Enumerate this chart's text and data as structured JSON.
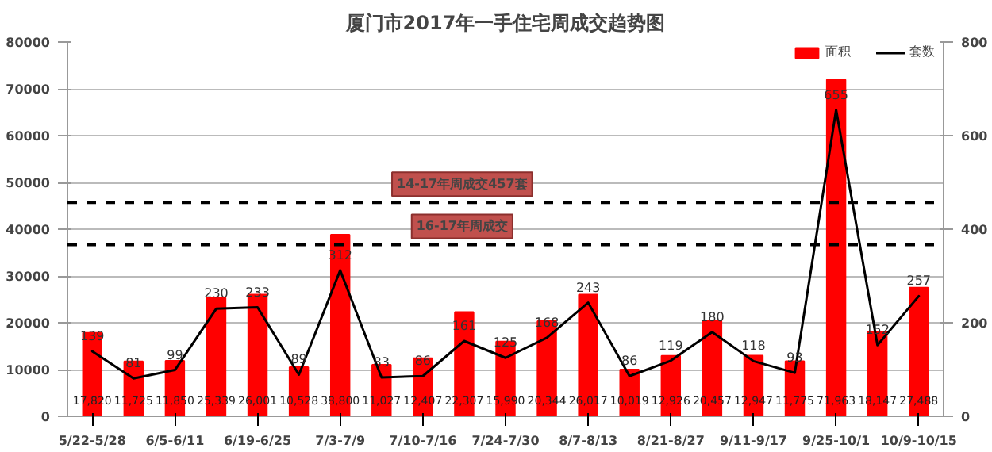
{
  "chart_data": {
    "type": "bar",
    "title": "厦门市2017年一手住宅周成交趋势图",
    "categories": [
      "5/22-5/28",
      null,
      "6/5-6/11",
      null,
      "6/19-6/25",
      null,
      "7/3-7/9",
      null,
      "7/10-7/16",
      null,
      "7/24-7/30",
      null,
      "8/7-8/13",
      null,
      "8/21-8/27",
      null,
      "9/11-9/17",
      null,
      "9/25-10/1",
      null,
      "10/9-10/15"
    ],
    "series": [
      {
        "name": "面积",
        "color": "#ff0000",
        "values": [
          17820,
          11725,
          11850,
          25339,
          26001,
          10528,
          38800,
          11027,
          12407,
          22307,
          15990,
          20344,
          26017,
          10019,
          12926,
          20457,
          12947,
          11775,
          71963,
          18147,
          27488
        ],
        "value_labels": [
          "17,820",
          "11,725",
          "11,850",
          "25,339",
          "26,001",
          "10,528",
          "38,800",
          "11,027",
          "12,407",
          "22,307",
          "15,990",
          "20,344",
          "26,017",
          "10,019",
          "12,926",
          "20,457",
          "12,947",
          "11,775",
          "71,963",
          "18,147",
          "27,488"
        ]
      },
      {
        "name": "套数",
        "type": "line",
        "axis": "y2",
        "color": "#000000",
        "values": [
          139,
          81,
          99,
          230,
          233,
          89,
          312,
          83,
          86,
          161,
          125,
          168,
          243,
          86,
          119,
          180,
          118,
          93,
          655,
          152,
          257
        ],
        "value_labels": [
          "139",
          "81",
          "99",
          "230",
          "233",
          "89",
          "312",
          "83",
          "86",
          "161",
          "125",
          "168",
          "243",
          "86",
          "119",
          "180",
          "118",
          "93",
          "655",
          "152",
          "257"
        ]
      }
    ],
    "ylim": [
      0,
      80000
    ],
    "yticks": [
      0,
      10000,
      20000,
      30000,
      40000,
      50000,
      60000,
      70000,
      80000
    ],
    "y2lim": [
      0,
      800
    ],
    "y2ticks": [
      0,
      200,
      400,
      600,
      800
    ],
    "ref_lines": [
      {
        "axis": "y2",
        "value": 457,
        "label": "14-17年周成交457套",
        "color": "#000000",
        "line_style": "dashed"
      },
      {
        "axis": "y2",
        "value": 367,
        "label": "16-17年周成交",
        "color": "#000000",
        "line_style": "dashed"
      }
    ],
    "grid": "y",
    "legend": "top right",
    "marker": "none",
    "line_style": "solid"
  }
}
